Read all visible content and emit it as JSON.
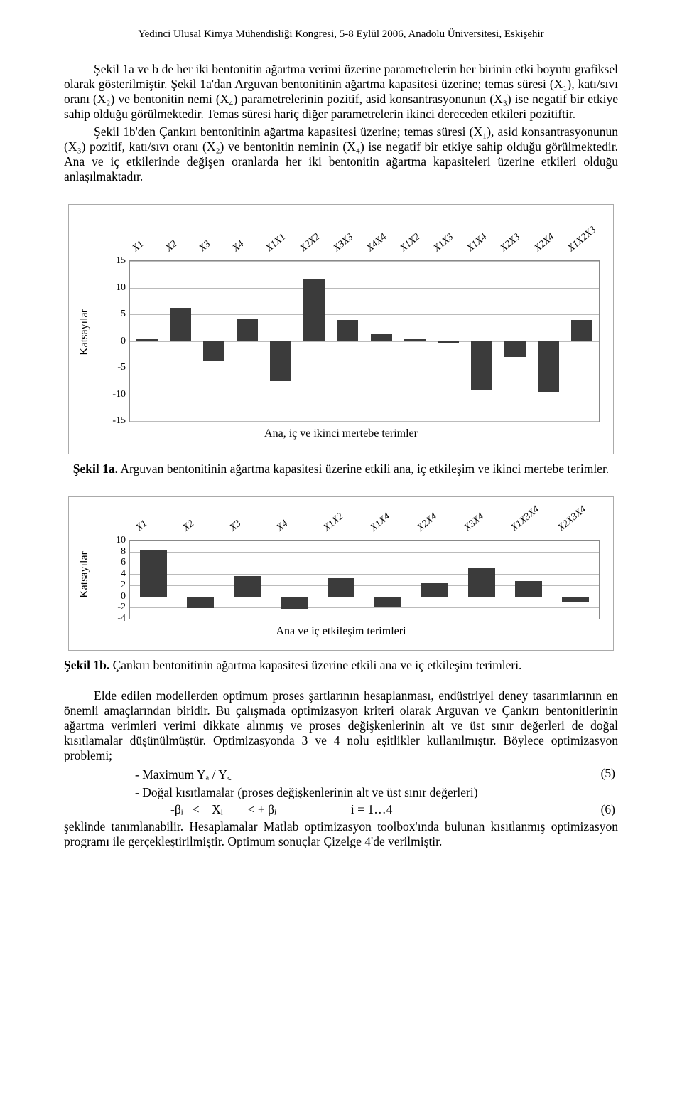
{
  "header": "Yedinci Ulusal Kimya Mühendisliği Kongresi, 5-8 Eylül 2006, Anadolu Üniversitesi, Eskişehir",
  "p1": "Şekil 1a ve b de her iki bentonitin ağartma verimi üzerine parametrelerin her birinin etki boyutu grafiksel olarak gösterilmiştir. Şekil 1a'dan Arguvan bentonitinin ağartma kapasitesi üzerine; temas süresi (X₁), katı/sıvı oranı (X₂) ve bentonitin nemi (X₄) parametrelerinin pozitif, asid konsantrasyonunun (X₃) ise negatif bir etkiye sahip olduğu görülmektedir. Temas süresi hariç diğer parametrelerin ikinci dereceden etkileri pozitiftir.",
  "p2": "Şekil 1b'den Çankırı bentonitinin ağartma kapasitesi üzerine; temas süresi (X₁), asid konsantrasyonunun (X₃) pozitif, katı/sıvı oranı (X₂) ve bentonitin neminin (X₄) ise negatif bir etkiye sahip olduğu görülmektedir. Ana ve iç etkilerinde değişen oranlarda her iki bentonitin ağartma kapasiteleri üzerine etkileri olduğu anlaşılmaktadır.",
  "chart1": {
    "ylabel": "Katsayılar",
    "ymin": -15,
    "ymax": 15,
    "ytick": 5,
    "categories": [
      "X1",
      "X2",
      "X3",
      "X4",
      "X1X1",
      "X2X2",
      "X3X3",
      "X4X4",
      "X1X2",
      "X1X3",
      "X1X4",
      "X2X3",
      "X2X4",
      "X1X2X3"
    ],
    "values": [
      0.5,
      6.2,
      -3.7,
      4.1,
      -7.5,
      11.5,
      4.0,
      1.3,
      0.3,
      -0.3,
      -9.3,
      -3.0,
      -9.5,
      4.0
    ],
    "bar_color": "#3b3b3b",
    "background_color": "#ffffff",
    "grid_color": "#bbbbbb",
    "caption": "Ana, iç ve ikinci mertebe terimler"
  },
  "fig1a_strong": "Şekil 1a.",
  "fig1a_text": " Arguvan bentonitinin ağartma kapasitesi üzerine etkili ana, iç etkileşim ve ikinci mertebe terimler.",
  "chart2": {
    "ylabel": "Katsayılar",
    "ymin": -4,
    "ymax": 10,
    "ytick": 2,
    "categories": [
      "X1",
      "X2",
      "X3",
      "X4",
      "X1X2",
      "X1X4",
      "X2X4",
      "X3X4",
      "X1X3X4",
      "X2X3X4"
    ],
    "values": [
      8.4,
      -2.1,
      3.7,
      -2.4,
      3.2,
      -1.9,
      2.4,
      5.0,
      2.7,
      -1.0
    ],
    "bar_color": "#3b3b3b",
    "background_color": "#ffffff",
    "grid_color": "#bbbbbb",
    "caption": "Ana ve iç etkileşim terimleri"
  },
  "fig1b_strong": "Şekil 1b.",
  "fig1b_text": " Çankırı bentonitinin ağartma kapasitesi üzerine etkili ana ve iç etkileşim terimleri.",
  "p3": "Elde edilen modellerden optimum proses şartlarının hesaplanması, endüstriyel deney tasarımlarının en önemli amaçlarından biridir. Bu çalışmada optimizasyon kriteri olarak Arguvan ve Çankırı bentonitlerinin ağartma verimleri verimi dikkate alınmış ve proses değişkenlerinin alt ve üst sınır değerleri de doğal kısıtlamalar düşünülmüştür. Optimizasyonda 3 ve 4 nolu eşitlikler kullanılmıştır. Böylece optimizasyon problemi;",
  "eq5_lhs": "- Maximum Yₐ / Y꜀",
  "eq5_num": "(5)",
  "eq6_title": "- Doğal kısıtlamalar (proses değişkenlerinin alt ve üst sınır değerleri)",
  "eq6_lhs": "-βᵢ   <    Xᵢ        < + βᵢ                        i = 1…4",
  "eq6_num": "(6)",
  "p4": "şeklinde tanımlanabilir. Hesaplamalar Matlab optimizasyon toolbox'ında bulunan kısıtlanmış optimizasyon programı ile gerçekleştirilmiştir. Optimum sonuçlar Çizelge 4'de verilmiştir."
}
